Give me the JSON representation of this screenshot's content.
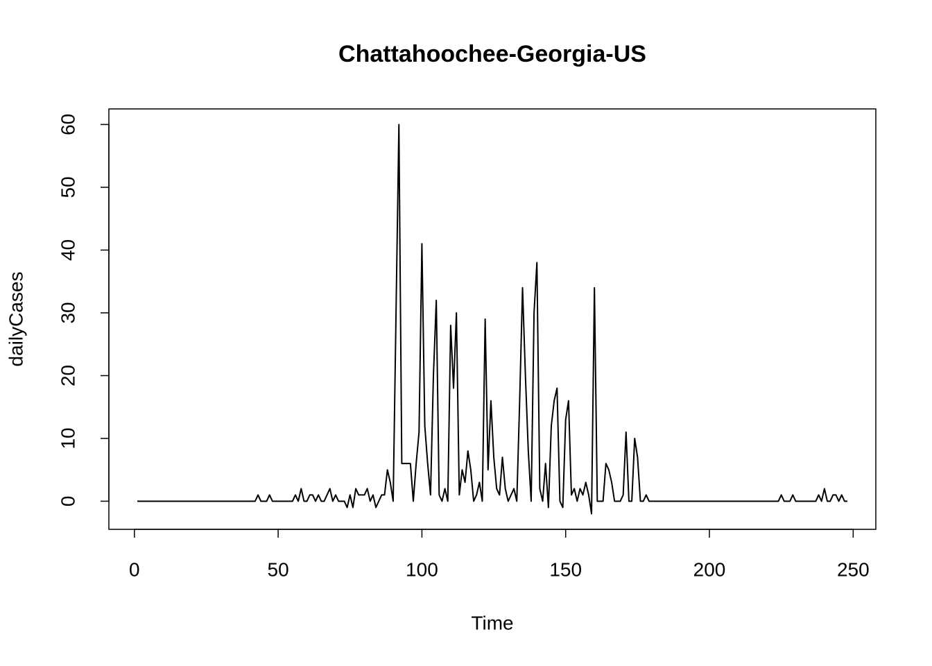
{
  "chart_data": {
    "type": "line",
    "title": "Chattahoochee-Georgia-US",
    "x_label": "Time",
    "y_label": "dailyCases",
    "color": "#000000",
    "x": [
      1,
      2,
      3,
      4,
      5,
      6,
      7,
      8,
      9,
      10,
      11,
      12,
      13,
      14,
      15,
      16,
      17,
      18,
      19,
      20,
      21,
      22,
      23,
      24,
      25,
      26,
      27,
      28,
      29,
      30,
      31,
      32,
      33,
      34,
      35,
      36,
      37,
      38,
      39,
      40,
      41,
      42,
      43,
      44,
      45,
      46,
      47,
      48,
      49,
      50,
      51,
      52,
      53,
      54,
      55,
      56,
      57,
      58,
      59,
      60,
      61,
      62,
      63,
      64,
      65,
      66,
      67,
      68,
      69,
      70,
      71,
      72,
      73,
      74,
      75,
      76,
      77,
      78,
      79,
      80,
      81,
      82,
      83,
      84,
      85,
      86,
      87,
      88,
      89,
      90,
      91,
      92,
      93,
      94,
      95,
      96,
      97,
      98,
      99,
      100,
      101,
      102,
      103,
      104,
      105,
      106,
      107,
      108,
      109,
      110,
      111,
      112,
      113,
      114,
      115,
      116,
      117,
      118,
      119,
      120,
      121,
      122,
      123,
      124,
      125,
      126,
      127,
      128,
      129,
      130,
      131,
      132,
      133,
      134,
      135,
      136,
      137,
      138,
      139,
      140,
      141,
      142,
      143,
      144,
      145,
      146,
      147,
      148,
      149,
      150,
      151,
      152,
      153,
      154,
      155,
      156,
      157,
      158,
      159,
      160,
      161,
      162,
      163,
      164,
      165,
      166,
      167,
      168,
      169,
      170,
      171,
      172,
      173,
      174,
      175,
      176,
      177,
      178,
      179,
      180,
      181,
      182,
      183,
      184,
      185,
      186,
      187,
      188,
      189,
      190,
      191,
      192,
      193,
      194,
      195,
      196,
      197,
      198,
      199,
      200,
      201,
      202,
      203,
      204,
      205,
      206,
      207,
      208,
      209,
      210,
      211,
      212,
      213,
      214,
      215,
      216,
      217,
      218,
      219,
      220,
      221,
      222,
      223,
      224,
      225,
      226,
      227,
      228,
      229,
      230,
      231,
      232,
      233,
      234,
      235,
      236,
      237,
      238,
      239,
      240,
      241,
      242,
      243,
      244,
      245,
      246,
      247,
      248
    ],
    "values": [
      0,
      0,
      0,
      0,
      0,
      0,
      0,
      0,
      0,
      0,
      0,
      0,
      0,
      0,
      0,
      0,
      0,
      0,
      0,
      0,
      0,
      0,
      0,
      0,
      0,
      0,
      0,
      0,
      0,
      0,
      0,
      0,
      0,
      0,
      0,
      0,
      0,
      0,
      0,
      0,
      0,
      0,
      1,
      0,
      0,
      0,
      1,
      0,
      0,
      0,
      0,
      0,
      0,
      0,
      0,
      1,
      0,
      2,
      0,
      0,
      1,
      1,
      0,
      1,
      0,
      0,
      1,
      2,
      0,
      1,
      0,
      0,
      0,
      -1,
      1,
      -1,
      2,
      1,
      1,
      1,
      2,
      0,
      1,
      -1,
      0,
      1,
      1,
      5,
      3,
      0,
      30,
      60,
      6,
      6,
      6,
      6,
      0,
      6,
      11,
      41,
      12,
      6,
      1,
      20,
      32,
      1,
      0,
      2,
      0,
      28,
      18,
      30,
      1,
      5,
      3,
      8,
      5,
      0,
      1,
      3,
      0,
      29,
      5,
      16,
      7,
      2,
      1,
      7,
      2,
      0,
      1,
      2,
      0,
      16,
      34,
      20,
      8,
      0,
      30,
      38,
      2,
      0,
      6,
      -1,
      12,
      16,
      18,
      0,
      -1,
      13,
      16,
      1,
      2,
      0,
      2,
      1,
      3,
      1,
      -2,
      34,
      0,
      0,
      0,
      6,
      5,
      3,
      0,
      0,
      0,
      1,
      11,
      0,
      0,
      10,
      7,
      0,
      0,
      1,
      0,
      0,
      0,
      0,
      0,
      0,
      0,
      0,
      0,
      0,
      0,
      0,
      0,
      0,
      0,
      0,
      0,
      0,
      0,
      0,
      0,
      0,
      0,
      0,
      0,
      0,
      0,
      0,
      0,
      0,
      0,
      0,
      0,
      0,
      0,
      0,
      0,
      0,
      0,
      0,
      0,
      0,
      0,
      0,
      0,
      0,
      1,
      0,
      0,
      0,
      1,
      0,
      0,
      0,
      0,
      0,
      0,
      0,
      0,
      1,
      0,
      2,
      0,
      0,
      1,
      1,
      0,
      1,
      0,
      0
    ],
    "xlim": [
      -8.88,
      257.88
    ],
    "ylim": [
      -4.48,
      62.48
    ],
    "xticks": [
      0,
      50,
      100,
      150,
      200,
      250
    ],
    "yticks": [
      0,
      10,
      20,
      30,
      40,
      50,
      60
    ]
  }
}
